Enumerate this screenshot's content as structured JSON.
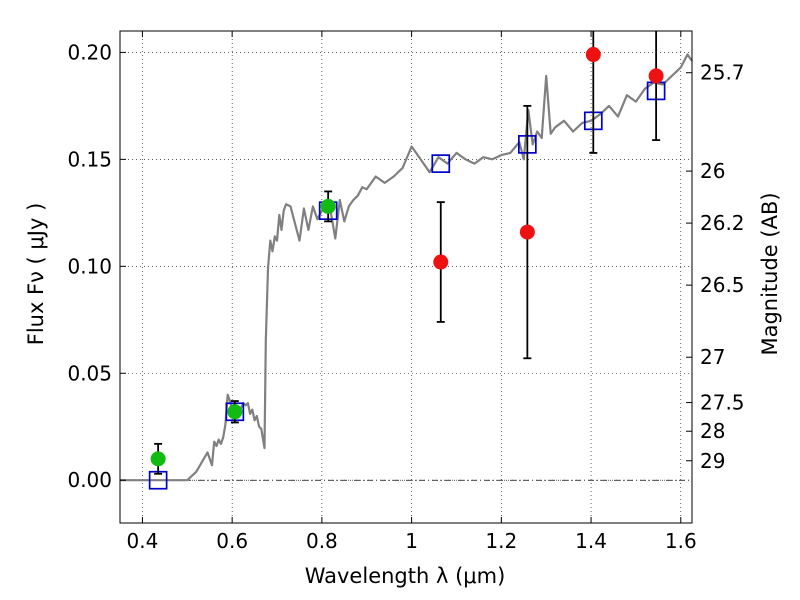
{
  "chart_data": {
    "type": "scatter",
    "title": "",
    "xlabel": "Wavelength  λ (μm)",
    "ylabel": "Flux  Fν  ( μJy )",
    "y2label": "Magnitude (AB)",
    "xlim": [
      0.35,
      1.625
    ],
    "ylim": [
      -0.02,
      0.21
    ],
    "grid": true,
    "x_ticks": [
      0.4,
      0.6,
      0.8,
      1.0,
      1.2,
      1.4,
      1.6
    ],
    "x_tick_labels": [
      "0.4",
      "0.6",
      "0.8",
      "1",
      "1.2",
      "1.4",
      "1.6"
    ],
    "y_ticks": [
      0.0,
      0.05,
      0.1,
      0.15,
      0.2
    ],
    "y_tick_labels": [
      "0.00",
      "0.05",
      "0.10",
      "0.15",
      "0.20"
    ],
    "right_ticks": [
      {
        "label": "25.7",
        "flux": 0.1905
      },
      {
        "label": "26",
        "flux": 0.1445
      },
      {
        "label": "26.2",
        "flux": 0.1202
      },
      {
        "label": "26.5",
        "flux": 0.0912
      },
      {
        "label": "27",
        "flux": 0.0575
      },
      {
        "label": "27.5",
        "flux": 0.0363
      },
      {
        "label": "28",
        "flux": 0.0229
      },
      {
        "label": "29",
        "flux": 0.0091
      }
    ],
    "series": [
      {
        "marker": "line",
        "color": "#808080",
        "x": [
          0.35,
          0.5,
          0.52,
          0.545,
          0.555,
          0.56,
          0.565,
          0.57,
          0.575,
          0.58,
          0.585,
          0.59,
          0.595,
          0.6,
          0.605,
          0.61,
          0.615,
          0.62,
          0.625,
          0.63,
          0.635,
          0.64,
          0.645,
          0.65,
          0.655,
          0.66,
          0.665,
          0.672,
          0.675,
          0.68,
          0.685,
          0.69,
          0.695,
          0.7,
          0.705,
          0.71,
          0.715,
          0.72,
          0.73,
          0.74,
          0.75,
          0.76,
          0.77,
          0.78,
          0.79,
          0.8,
          0.81,
          0.82,
          0.83,
          0.84,
          0.85,
          0.86,
          0.87,
          0.88,
          0.89,
          0.9,
          0.92,
          0.94,
          0.96,
          0.98,
          1.0,
          1.02,
          1.04,
          1.06,
          1.08,
          1.1,
          1.12,
          1.14,
          1.16,
          1.18,
          1.2,
          1.22,
          1.24,
          1.25,
          1.26,
          1.27,
          1.28,
          1.29,
          1.3,
          1.31,
          1.32,
          1.34,
          1.36,
          1.38,
          1.4,
          1.42,
          1.44,
          1.46,
          1.48,
          1.5,
          1.52,
          1.54,
          1.56,
          1.58,
          1.6,
          1.615,
          1.625
        ],
        "y": [
          0.0,
          0.0,
          0.004,
          0.013,
          0.007,
          0.018,
          0.016,
          0.019,
          0.017,
          0.02,
          0.026,
          0.04,
          0.037,
          0.033,
          0.036,
          0.034,
          0.03,
          0.034,
          0.036,
          0.035,
          0.036,
          0.031,
          0.033,
          0.028,
          0.03,
          0.025,
          0.024,
          0.015,
          0.065,
          0.099,
          0.112,
          0.107,
          0.114,
          0.112,
          0.124,
          0.117,
          0.126,
          0.129,
          0.128,
          0.12,
          0.112,
          0.127,
          0.117,
          0.128,
          0.122,
          0.126,
          0.129,
          0.125,
          0.113,
          0.131,
          0.121,
          0.128,
          0.131,
          0.133,
          0.137,
          0.136,
          0.142,
          0.139,
          0.142,
          0.146,
          0.156,
          0.15,
          0.144,
          0.151,
          0.148,
          0.153,
          0.15,
          0.148,
          0.151,
          0.15,
          0.152,
          0.153,
          0.158,
          0.15,
          0.173,
          0.157,
          0.163,
          0.16,
          0.189,
          0.162,
          0.165,
          0.168,
          0.163,
          0.167,
          0.168,
          0.171,
          0.175,
          0.17,
          0.18,
          0.177,
          0.183,
          0.186,
          0.185,
          0.189,
          0.193,
          0.199,
          0.196
        ]
      },
      {
        "marker": "open-square",
        "color": "#0000cc",
        "x": [
          0.435,
          0.606,
          0.814,
          1.065,
          1.258,
          1.405,
          1.545
        ],
        "y": [
          0.0,
          0.032,
          0.126,
          0.148,
          0.157,
          0.168,
          0.182
        ]
      },
      {
        "marker": "circle",
        "color": "#11bb11",
        "x": [
          0.435,
          0.606,
          0.814
        ],
        "y": [
          0.01,
          0.032,
          0.128
        ],
        "err": [
          0.007,
          0.005,
          0.007
        ]
      },
      {
        "marker": "circle",
        "color": "#ee1111",
        "x": [
          1.065,
          1.258,
          1.405,
          1.545
        ],
        "y": [
          0.102,
          0.116,
          0.199,
          0.189
        ],
        "err": [
          0.028,
          0.059,
          0.046,
          0.03
        ]
      }
    ]
  }
}
